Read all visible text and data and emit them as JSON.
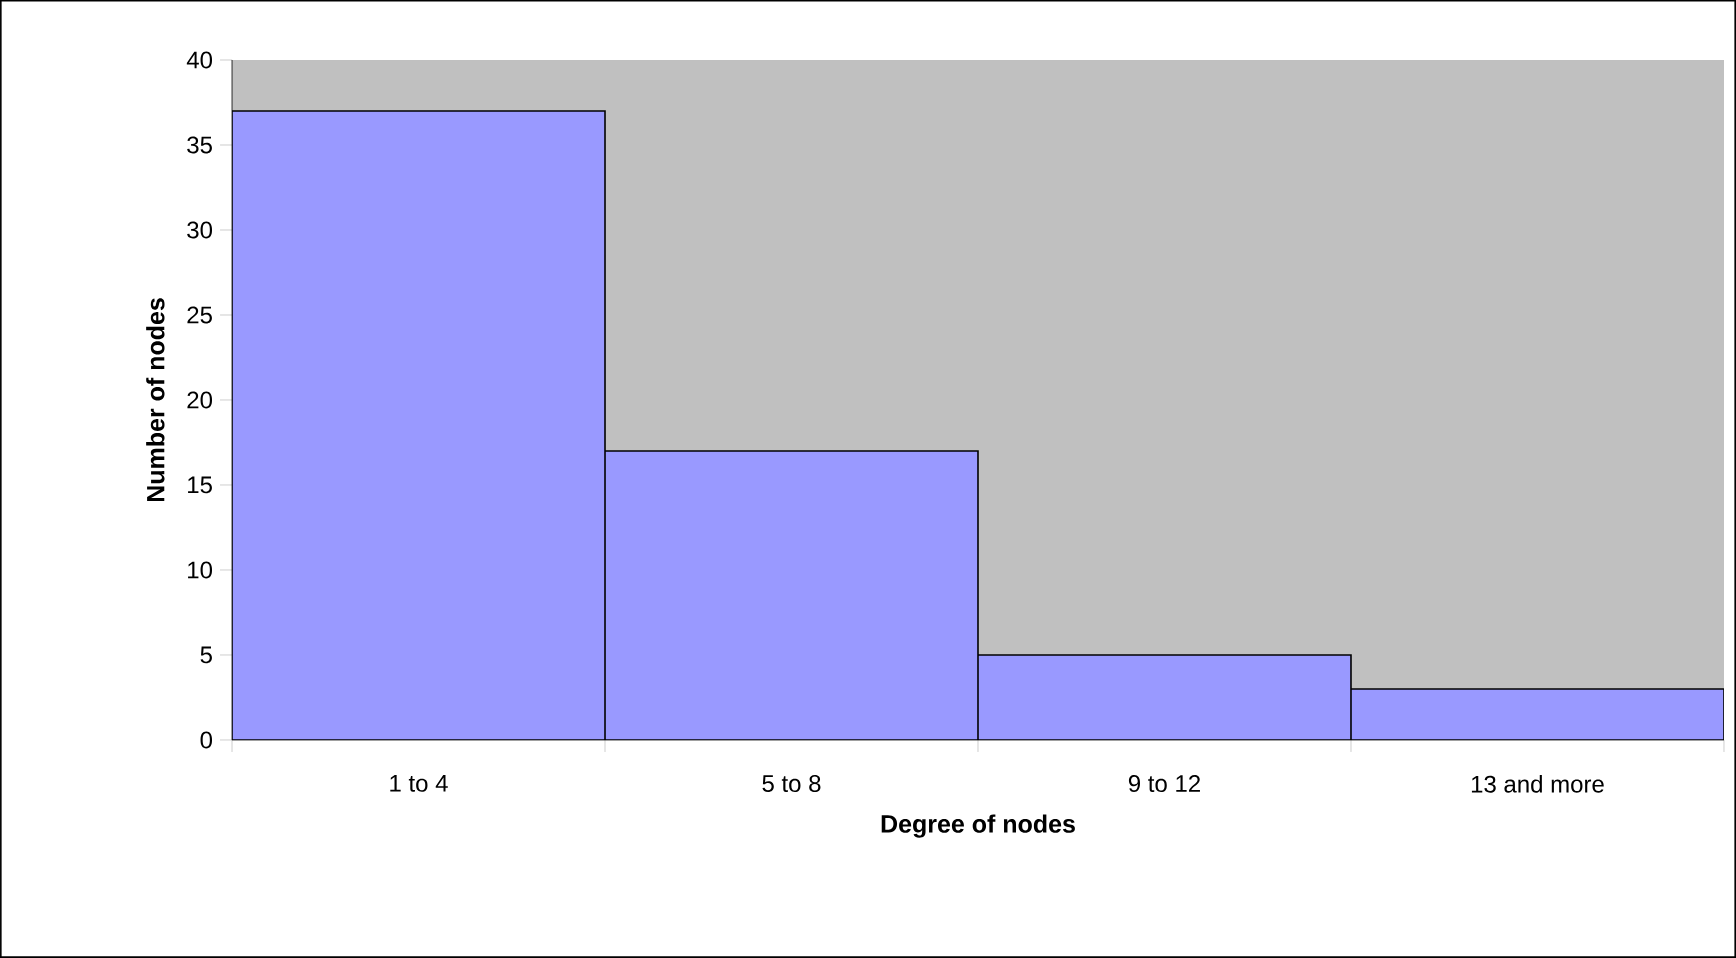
{
  "chart_data": {
    "type": "bar",
    "xlabel": "Degree of nodes",
    "ylabel": "Number of nodes",
    "categories": [
      "1 to 4",
      "5 to 8",
      "9 to 12",
      "13 and more"
    ],
    "values": [
      37,
      17,
      5,
      3
    ],
    "color": "#9999ff",
    "ylim": [
      0,
      40
    ],
    "yticks": [
      0,
      5,
      10,
      15,
      20,
      25,
      30,
      35,
      40
    ],
    "grid": false
  }
}
